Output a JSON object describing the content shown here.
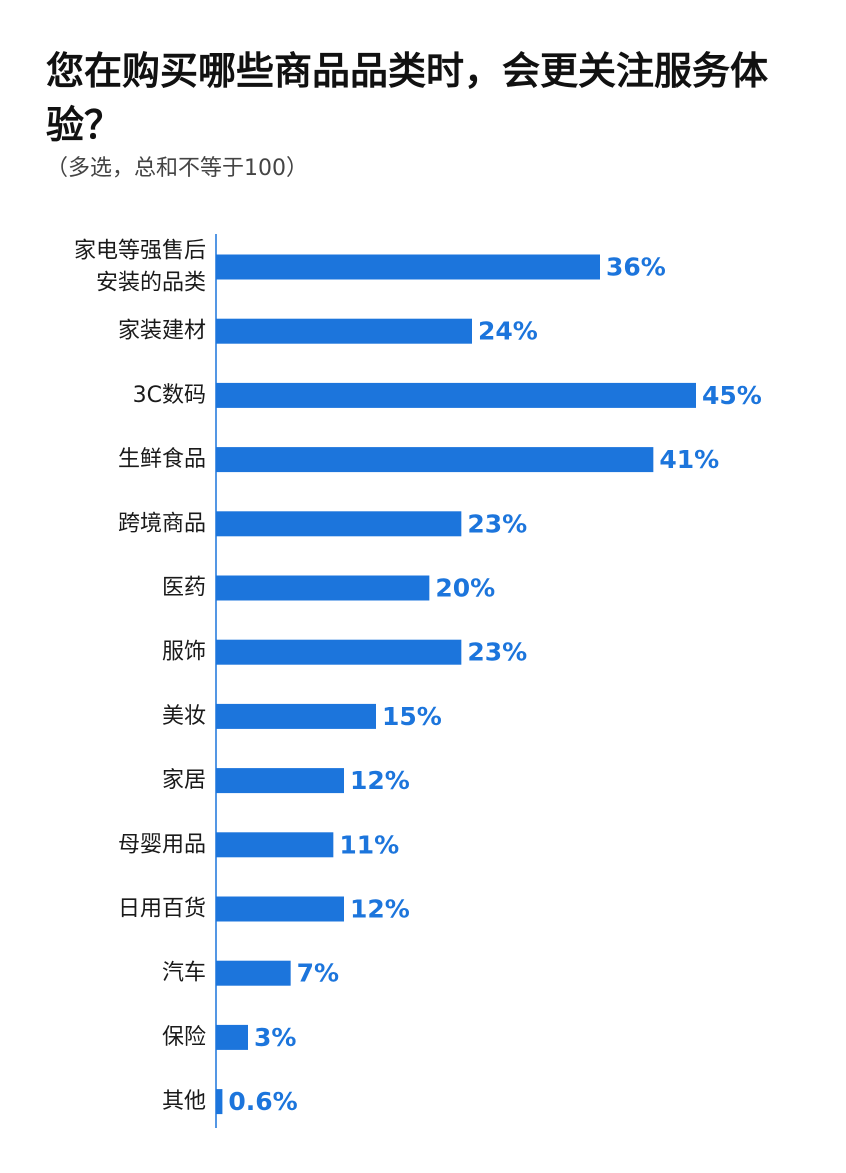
{
  "title": "您在购买哪些商品品类时，会更关注服务体验？",
  "subtitle": "（多选，总和不等于100）",
  "colors": {
    "bar": "#1c75dc",
    "axis": "#1c75dc",
    "value_label": "#1c75dc"
  },
  "chart_data": {
    "type": "bar",
    "orientation": "horizontal",
    "title": "您在购买哪些商品品类时，会更关注服务体验？",
    "subtitle": "（多选，总和不等于100）",
    "xlim": [
      0,
      50
    ],
    "grid": false,
    "legend": "none",
    "categories": [
      [
        "家电等强售后",
        "安装的品类"
      ],
      [
        "家装建材"
      ],
      [
        "3C数码"
      ],
      [
        "生鲜食品"
      ],
      [
        "跨境商品"
      ],
      [
        "医药"
      ],
      [
        "服饰"
      ],
      [
        "美妆"
      ],
      [
        "家居"
      ],
      [
        "母婴用品"
      ],
      [
        "日用百货"
      ],
      [
        "汽车"
      ],
      [
        "保险"
      ],
      [
        "其他"
      ]
    ],
    "values": [
      36,
      24,
      45,
      41,
      23,
      20,
      23,
      15,
      12,
      11,
      12,
      7,
      3,
      0.6
    ],
    "value_labels": [
      "36%",
      "24%",
      "45%",
      "41%",
      "23%",
      "20%",
      "23%",
      "15%",
      "12%",
      "11%",
      "12%",
      "7%",
      "3%",
      "0.6%"
    ]
  }
}
